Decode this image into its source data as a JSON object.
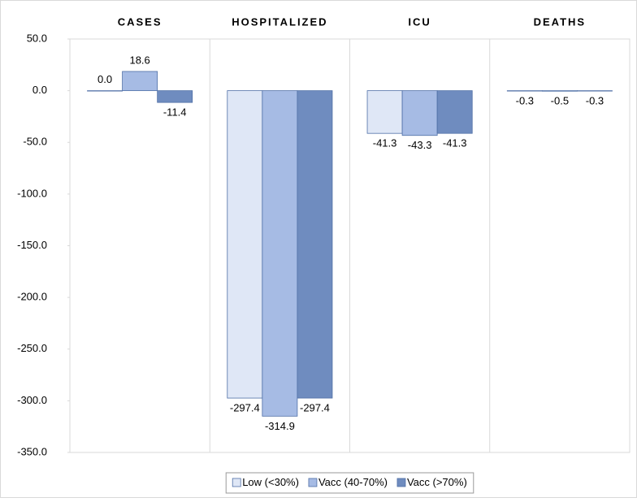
{
  "chart_data": {
    "type": "bar",
    "categories": [
      "CASES",
      "HOSPITALIZED",
      "ICU",
      "DEATHS"
    ],
    "series": [
      {
        "name": "Low (<30%)",
        "color": "#dfe7f6",
        "values": [
          0,
          -297.4,
          -41.3,
          -0.3
        ],
        "value_labels": [
          "0.0",
          "-297.4",
          "-41.3",
          "-0.3"
        ]
      },
      {
        "name": "Vacc (40-70%)",
        "color": "#a6bbe4",
        "values": [
          18.6,
          -314.9,
          -43.3,
          -0.5
        ],
        "value_labels": [
          "18.6",
          "-314.9",
          "-43.3",
          "-0.5"
        ]
      },
      {
        "name": "Vacc (>70%)",
        "color": "#6f8cbf",
        "values": [
          -11.4,
          -297.4,
          -41.3,
          -0.3
        ],
        "value_labels": [
          "-11.4",
          "-297.4",
          "-41.3",
          "-0.3"
        ]
      }
    ],
    "ylim": [
      -350,
      50
    ],
    "yticks": [
      {
        "value": 50,
        "label": "50.0"
      },
      {
        "value": 0,
        "label": "0.0"
      },
      {
        "value": -50,
        "label": "-50.0"
      },
      {
        "value": -100,
        "label": "-100.0"
      },
      {
        "value": -150,
        "label": "-150.0"
      },
      {
        "value": -200,
        "label": "-200.0"
      },
      {
        "value": -250,
        "label": "-250.0"
      },
      {
        "value": -300,
        "label": "-300.0"
      },
      {
        "value": -350,
        "label": "-350.0"
      }
    ],
    "legend": "bottom"
  }
}
